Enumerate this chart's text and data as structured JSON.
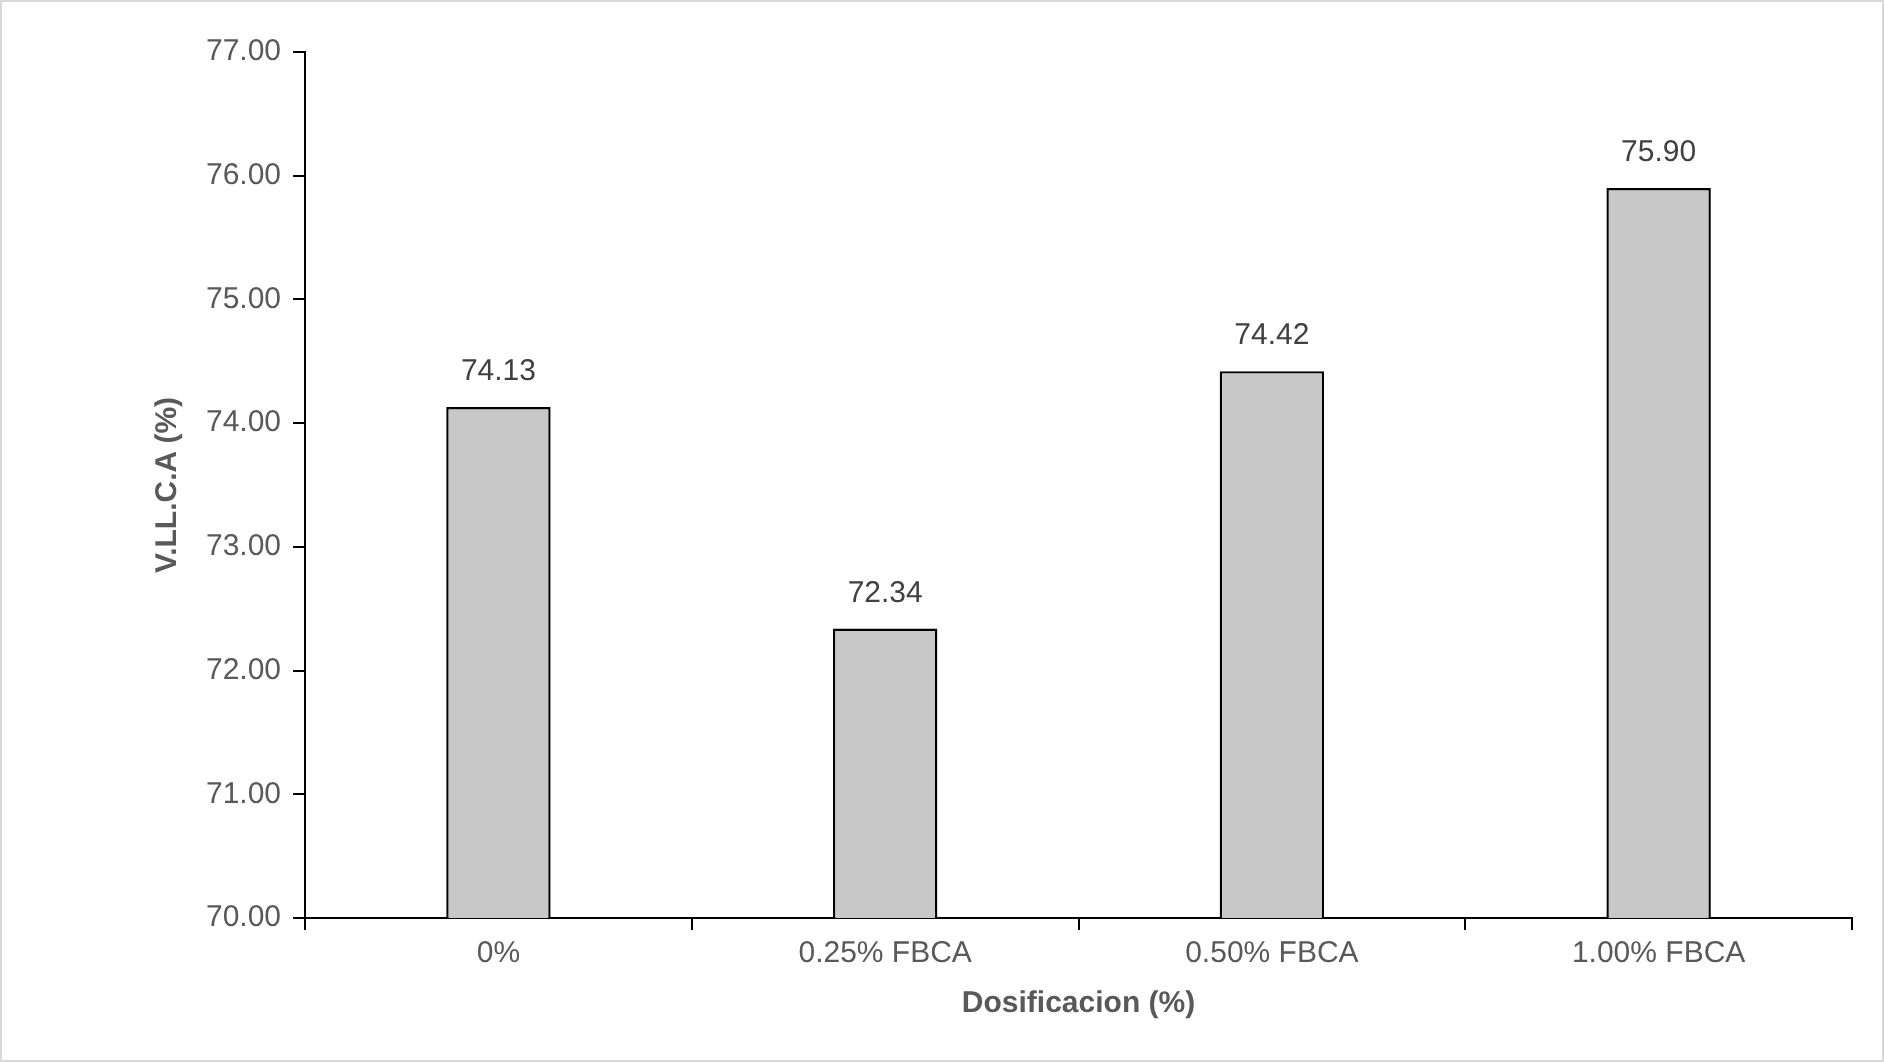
{
  "chart_data": {
    "type": "bar",
    "xlabel": "Dosificacion (%)",
    "ylabel": "V.LL.C.A (%)",
    "categories": [
      "0%",
      "0.25% FBCA",
      "0.50% FBCA",
      "1.00% FBCA"
    ],
    "values": [
      74.13,
      72.34,
      74.42,
      75.9
    ],
    "value_labels": [
      "74.13",
      "72.34",
      "74.42",
      "75.90"
    ],
    "color": "#c8c8c8",
    "ylim": [
      70,
      77
    ],
    "yticks": [
      {
        "value": 70,
        "label": "70.00"
      },
      {
        "value": 71,
        "label": "71.00"
      },
      {
        "value": 72,
        "label": "72.00"
      },
      {
        "value": 73,
        "label": "73.00"
      },
      {
        "value": 74,
        "label": "74.00"
      },
      {
        "value": 75,
        "label": "75.00"
      },
      {
        "value": 76,
        "label": "76.00"
      },
      {
        "value": 77,
        "label": "77.00"
      }
    ],
    "grid": false,
    "legend": false
  }
}
